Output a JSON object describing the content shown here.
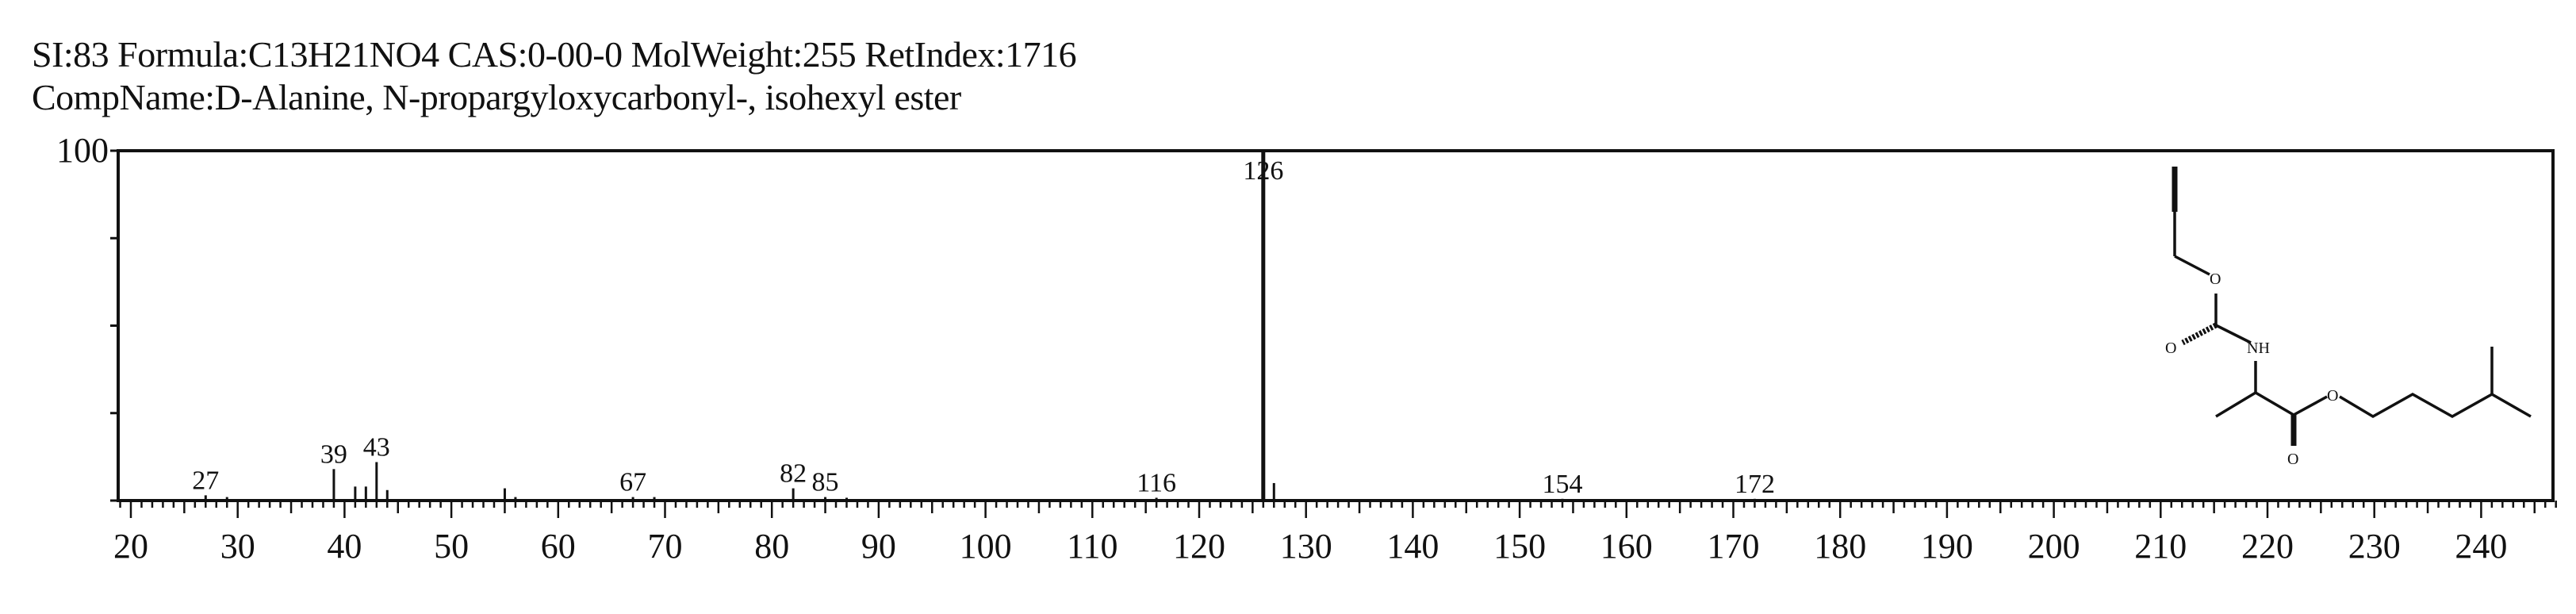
{
  "header": {
    "line1": "SI:83  Formula:C13H21NO4  CAS:0-00-0  MolWeight:255  RetIndex:1716",
    "line2": "CompName:D-Alanine, N-propargyloxycarbonyl-, isohexyl ester"
  },
  "chart_data": {
    "type": "bar",
    "title": "",
    "xlabel": "",
    "ylabel": "",
    "xlim": [
      19,
      247
    ],
    "ylim": [
      0,
      100
    ],
    "y_tick_label": "100",
    "y_ticks": [
      0,
      25,
      50,
      75,
      100
    ],
    "x_ticks": [
      20,
      30,
      40,
      50,
      60,
      70,
      80,
      90,
      100,
      110,
      120,
      130,
      140,
      150,
      160,
      170,
      180,
      190,
      200,
      210,
      220,
      230,
      240
    ],
    "peaks": [
      {
        "mz": 27,
        "intensity": 1.5,
        "label": "27"
      },
      {
        "mz": 29,
        "intensity": 1
      },
      {
        "mz": 39,
        "intensity": 9,
        "label": "39"
      },
      {
        "mz": 41,
        "intensity": 4
      },
      {
        "mz": 42,
        "intensity": 4
      },
      {
        "mz": 43,
        "intensity": 11,
        "label": "43"
      },
      {
        "mz": 44,
        "intensity": 3
      },
      {
        "mz": 55,
        "intensity": 3.5
      },
      {
        "mz": 56,
        "intensity": 1
      },
      {
        "mz": 67,
        "intensity": 1,
        "label": "67"
      },
      {
        "mz": 69,
        "intensity": 1
      },
      {
        "mz": 82,
        "intensity": 3.5,
        "label": "82"
      },
      {
        "mz": 85,
        "intensity": 1,
        "label": "85"
      },
      {
        "mz": 87,
        "intensity": 0.8
      },
      {
        "mz": 116,
        "intensity": 0.8,
        "label": "116"
      },
      {
        "mz": 126,
        "intensity": 100,
        "label": "126"
      },
      {
        "mz": 127,
        "intensity": 5
      },
      {
        "mz": 154,
        "intensity": 0.5,
        "label": "154"
      },
      {
        "mz": 172,
        "intensity": 0.5,
        "label": "172"
      }
    ],
    "structure_labels": [
      "O",
      "O",
      "NH",
      "O",
      "O"
    ]
  }
}
